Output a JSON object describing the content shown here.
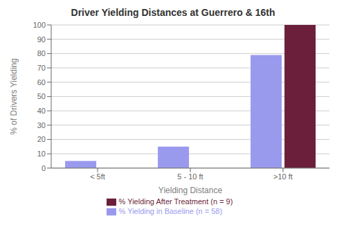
{
  "chart_data": {
    "type": "bar",
    "title": "Driver Yielding Distances at Guerrero & 16th",
    "xlabel": "Yielding Distance",
    "ylabel": "% of Drivers Yielding",
    "categories": [
      "< 5ft",
      "5 - 10 ft",
      ">10 ft"
    ],
    "series": [
      {
        "name": "% Yielding in Baseline (n = 58)",
        "color": "#9999ee",
        "values": [
          5,
          15,
          79
        ]
      },
      {
        "name": "% Yielding After Treatment (n = 9)",
        "color": "#6b1f3a",
        "values": [
          0,
          0,
          100
        ]
      }
    ],
    "ylim": [
      0,
      100
    ],
    "yticks": [
      0,
      10,
      20,
      30,
      40,
      50,
      60,
      70,
      80,
      90,
      100
    ],
    "grid": true,
    "legend": "bottom"
  }
}
